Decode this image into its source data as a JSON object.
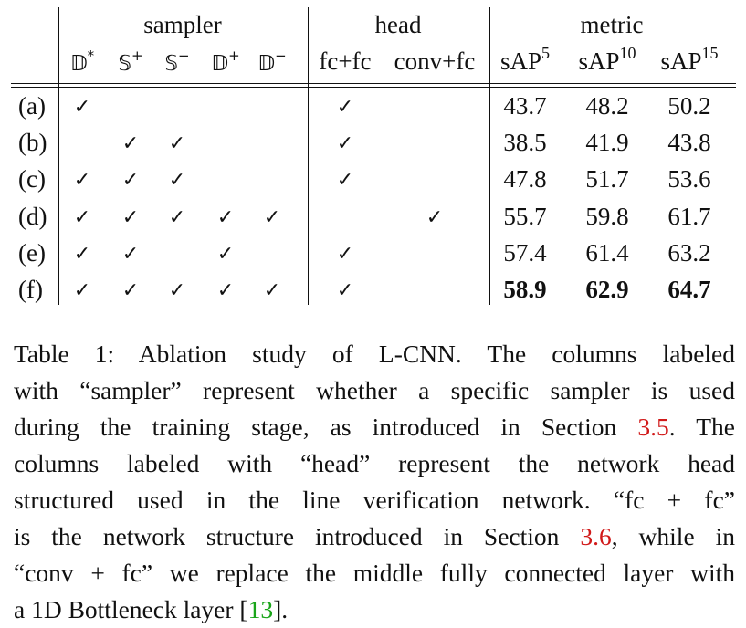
{
  "table": {
    "groups": {
      "sampler": "sampler",
      "head": "head",
      "metric": "metric"
    },
    "sampler_cols": [
      {
        "base": "𝔻",
        "sup": "*"
      },
      {
        "base": "𝕊",
        "sup": "+"
      },
      {
        "base": "𝕊",
        "sup": "−"
      },
      {
        "base": "𝔻",
        "sup": "+"
      },
      {
        "base": "𝔻",
        "sup": "−"
      }
    ],
    "head_cols": [
      "fc+fc",
      "conv+fc"
    ],
    "metric_cols": [
      {
        "base": "sAP",
        "sup": "5"
      },
      {
        "base": "sAP",
        "sup": "10"
      },
      {
        "base": "sAP",
        "sup": "15"
      }
    ],
    "check_mark": "✓",
    "rows": [
      {
        "label": "(a)",
        "sampler": [
          true,
          false,
          false,
          false,
          false
        ],
        "head": [
          true,
          false
        ],
        "metrics": [
          "43.7",
          "48.2",
          "50.2"
        ],
        "bold": false
      },
      {
        "label": "(b)",
        "sampler": [
          false,
          true,
          true,
          false,
          false
        ],
        "head": [
          true,
          false
        ],
        "metrics": [
          "38.5",
          "41.9",
          "43.8"
        ],
        "bold": false
      },
      {
        "label": "(c)",
        "sampler": [
          true,
          true,
          true,
          false,
          false
        ],
        "head": [
          true,
          false
        ],
        "metrics": [
          "47.8",
          "51.7",
          "53.6"
        ],
        "bold": false
      },
      {
        "label": "(d)",
        "sampler": [
          true,
          true,
          true,
          true,
          true
        ],
        "head": [
          false,
          true
        ],
        "metrics": [
          "55.7",
          "59.8",
          "61.7"
        ],
        "bold": false
      },
      {
        "label": "(e)",
        "sampler": [
          true,
          true,
          false,
          true,
          false
        ],
        "head": [
          true,
          false
        ],
        "metrics": [
          "57.4",
          "61.4",
          "63.2"
        ],
        "bold": false
      },
      {
        "label": "(f)",
        "sampler": [
          true,
          true,
          true,
          true,
          true
        ],
        "head": [
          true,
          false
        ],
        "metrics": [
          "58.9",
          "62.9",
          "64.7"
        ],
        "bold": true
      }
    ]
  },
  "caption": {
    "lines": [
      [
        {
          "t": "Table 1:  Ablation study of L-CNN. The columns labeled"
        }
      ],
      [
        {
          "t": "with “sampler” represent whether a specific sampler is used"
        }
      ],
      [
        {
          "t": "during the training stage, as introduced in Section "
        },
        {
          "t": "3.5",
          "c": "ref"
        },
        {
          "t": ". The"
        }
      ],
      [
        {
          "t": "columns labeled with “head” represent the network head"
        }
      ],
      [
        {
          "t": "structured used in the line verification network.  “fc + fc”"
        }
      ],
      [
        {
          "t": "is the network structure introduced in Section "
        },
        {
          "t": "3.6",
          "c": "ref"
        },
        {
          "t": ", while in"
        }
      ],
      [
        {
          "t": "“conv + fc” we replace the middle fully connected layer with"
        }
      ],
      [
        {
          "t": "a 1D Bottleneck layer ["
        },
        {
          "t": "13",
          "c": "cite"
        },
        {
          "t": "]."
        }
      ]
    ]
  }
}
